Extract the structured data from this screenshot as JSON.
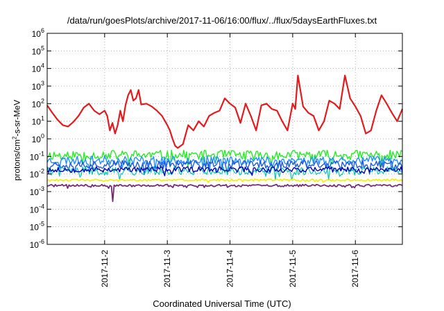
{
  "chart_data": {
    "type": "line",
    "title": "/data/run/goesPlots/archive/2017-11-06/16:00/flux/../flux/5daysEarthFluxes.txt",
    "xlabel": "Coordinated Universal Time (UTC)",
    "ylabel": {
      "prefix": "protons/cm",
      "sup": "2",
      "suffix": "-s-sr-MeV"
    },
    "x_range": [
      "2017-11-01T02:00",
      "2017-11-06T18:00"
    ],
    "x_ticks": [
      "2017-11-2",
      "2017-11-3",
      "2017-11-4",
      "2017-11-5",
      "2017-11-6"
    ],
    "y_scale": "log",
    "ylim": [
      1e-06,
      1000000.0
    ],
    "y_ticks": [
      {
        "base": "10",
        "exp": "-6"
      },
      {
        "base": "10",
        "exp": "-5"
      },
      {
        "base": "10",
        "exp": "-4"
      },
      {
        "base": "10",
        "exp": "-3"
      },
      {
        "base": "10",
        "exp": "-2"
      },
      {
        "base": "10",
        "exp": "-1"
      },
      {
        "base": "10",
        "exp": "0"
      },
      {
        "base": "10",
        "exp": "1"
      },
      {
        "base": "10",
        "exp": "2"
      },
      {
        "base": "10",
        "exp": "3"
      },
      {
        "base": "10",
        "exp": "4"
      },
      {
        "base": "10",
        "exp": "5"
      },
      {
        "base": "10",
        "exp": "6"
      }
    ],
    "grid": true,
    "series": [
      {
        "color": "#e41a1c",
        "width": 2.2,
        "x": [
          "2017-11-01T02:00",
          "2017-11-01T04:00",
          "2017-11-01T06:00",
          "2017-11-01T08:00",
          "2017-11-01T10:00",
          "2017-11-01T12:00",
          "2017-11-01T14:00",
          "2017-11-01T16:00",
          "2017-11-01T18:00",
          "2017-11-01T20:00",
          "2017-11-01T22:00",
          "2017-11-02T00:00",
          "2017-11-02T01:00",
          "2017-11-02T02:00",
          "2017-11-02T03:00",
          "2017-11-02T04:00",
          "2017-11-02T05:00",
          "2017-11-02T06:00",
          "2017-11-02T07:00",
          "2017-11-02T08:00",
          "2017-11-02T09:00",
          "2017-11-02T10:00",
          "2017-11-02T11:00",
          "2017-11-02T12:00",
          "2017-11-02T13:00",
          "2017-11-02T14:00",
          "2017-11-02T16:00",
          "2017-11-02T18:00",
          "2017-11-02T20:00",
          "2017-11-02T22:00",
          "2017-11-03T00:00",
          "2017-11-03T01:00",
          "2017-11-03T02:00",
          "2017-11-03T03:00",
          "2017-11-03T04:00",
          "2017-11-03T06:00",
          "2017-11-03T08:00",
          "2017-11-03T10:00",
          "2017-11-03T12:00",
          "2017-11-03T14:00",
          "2017-11-03T16:00",
          "2017-11-03T18:00",
          "2017-11-03T20:00",
          "2017-11-03T22:00",
          "2017-11-04T00:00",
          "2017-11-04T02:00",
          "2017-11-04T04:00",
          "2017-11-04T06:00",
          "2017-11-04T08:00",
          "2017-11-04T10:00",
          "2017-11-04T12:00",
          "2017-11-04T14:00",
          "2017-11-04T16:00",
          "2017-11-04T18:00",
          "2017-11-04T20:00",
          "2017-11-04T22:00",
          "2017-11-05T00:00",
          "2017-11-05T01:00",
          "2017-11-05T02:00",
          "2017-11-05T04:00",
          "2017-11-05T06:00",
          "2017-11-05T08:00",
          "2017-11-05T10:00",
          "2017-11-05T12:00",
          "2017-11-05T14:00",
          "2017-11-05T16:00",
          "2017-11-05T18:00",
          "2017-11-05T20:00",
          "2017-11-05T22:00",
          "2017-11-06T00:00",
          "2017-11-06T02:00",
          "2017-11-06T04:00",
          "2017-11-06T06:00",
          "2017-11-06T08:00",
          "2017-11-06T10:00",
          "2017-11-06T12:00",
          "2017-11-06T14:00",
          "2017-11-06T16:00",
          "2017-11-06T18:00"
        ],
        "y": [
          80,
          30,
          12,
          6,
          5,
          9,
          20,
          60,
          100,
          40,
          25,
          40,
          20,
          3,
          8,
          2,
          6,
          40,
          10,
          80,
          300,
          600,
          150,
          200,
          600,
          90,
          100,
          70,
          40,
          20,
          6,
          3,
          1,
          0.4,
          0.3,
          0.5,
          6,
          3,
          10,
          5,
          20,
          30,
          40,
          200,
          100,
          60,
          8,
          100,
          20,
          3,
          80,
          100,
          50,
          40,
          10,
          3,
          100,
          50,
          4000,
          70,
          30,
          20,
          3,
          10,
          150,
          100,
          50,
          4000,
          200,
          70,
          20,
          2,
          3,
          40,
          300,
          100,
          30,
          10,
          50
        ]
      },
      {
        "color": "#22ee22",
        "width": 1.4,
        "base": 0.12,
        "jitter": 0.35,
        "seed": 11
      },
      {
        "color": "#1e90ff",
        "width": 1.4,
        "base": 0.06,
        "jitter": 0.3,
        "seed": 23
      },
      {
        "color": "#1e5adc",
        "width": 1.4,
        "base": 0.035,
        "jitter": 0.3,
        "seed": 37
      },
      {
        "color": "#00c8b4",
        "width": 1.2,
        "base": 0.015,
        "jitter": 0.3,
        "seed": 41
      },
      {
        "color": "#0000b4",
        "width": 1.4,
        "base": 0.018,
        "jitter": 0.2,
        "seed": 53
      },
      {
        "color": "#f0f000",
        "width": 1.6,
        "base": 0.0045,
        "jitter": 0.08,
        "seed": 61
      },
      {
        "color": "#7a2a73",
        "width": 1.8,
        "base": 0.0022,
        "jitter": 0.08,
        "seed": 71
      }
    ]
  }
}
